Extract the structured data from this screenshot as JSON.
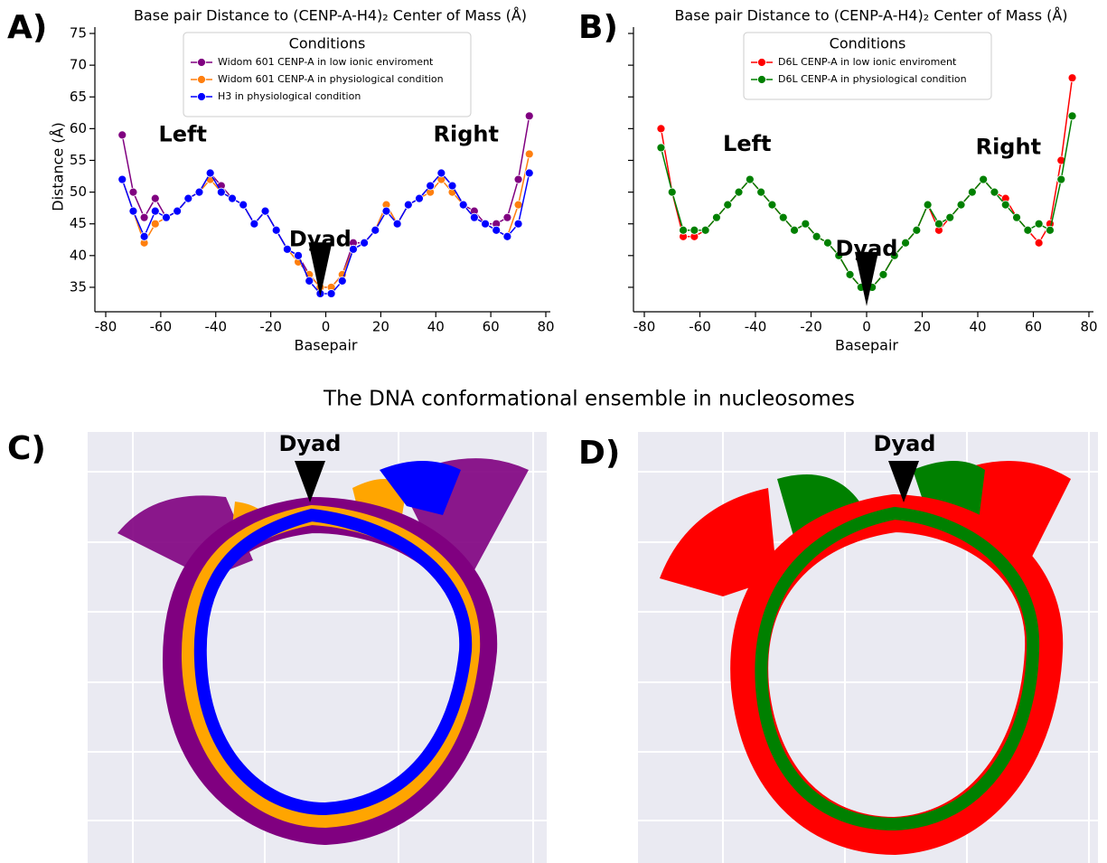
{
  "figure": {
    "panel_labels": [
      "A)",
      "B)",
      "C)",
      "D)"
    ],
    "subtitle": "The DNA conformational ensemble in nucleosomes",
    "image_annotations": [
      "Dyad",
      "Dyad"
    ]
  },
  "chart_data": [
    {
      "type": "line",
      "title": "Base pair Distance to (CENP-A-H4)₂ Center of Mass (Å)",
      "x_label": "Basepair",
      "y_label": "Distance (Å)",
      "legend_title": "Conditions",
      "legend": "upper center",
      "annotations": [
        "Left",
        "Right",
        "Dyad"
      ],
      "x": [
        -74,
        -70,
        -66,
        -62,
        -58,
        -54,
        -50,
        -46,
        -42,
        -38,
        -34,
        -30,
        -26,
        -22,
        -18,
        -14,
        -10,
        -6,
        -2,
        2,
        6,
        10,
        14,
        18,
        22,
        26,
        30,
        34,
        38,
        42,
        46,
        50,
        54,
        58,
        62,
        66,
        70,
        74
      ],
      "series": [
        {
          "name": "Widom 601 CENP-A in low ionic enviroment",
          "color": "#800080",
          "values": [
            59,
            50,
            46,
            49,
            46,
            47,
            49,
            50,
            53,
            51,
            49,
            48,
            45,
            47,
            44,
            41,
            40,
            37,
            35,
            35,
            37,
            42,
            42,
            44,
            48,
            45,
            48,
            49,
            51,
            53,
            51,
            48,
            47,
            45,
            45,
            46,
            52,
            62
          ]
        },
        {
          "name": "Widom 601 CENP-A in physiological condition",
          "color": "#ff7f0e",
          "values": [
            52,
            47,
            42,
            45,
            46,
            47,
            49,
            50,
            52,
            50,
            49,
            48,
            45,
            47,
            44,
            41,
            39,
            37,
            35,
            35,
            37,
            41,
            42,
            44,
            48,
            45,
            48,
            49,
            50,
            52,
            50,
            48,
            46,
            45,
            44,
            43,
            48,
            56
          ]
        },
        {
          "name": "H3 in physiological condition",
          "color": "#0000ff",
          "values": [
            52,
            47,
            43,
            47,
            46,
            47,
            49,
            50,
            53,
            50,
            49,
            48,
            45,
            47,
            44,
            41,
            40,
            36,
            34,
            34,
            36,
            41,
            42,
            44,
            47,
            45,
            48,
            49,
            51,
            53,
            51,
            48,
            46,
            45,
            44,
            43,
            45,
            53
          ]
        }
      ],
      "xlim": [
        -80,
        80
      ],
      "xticks": [
        -80,
        -60,
        -40,
        -20,
        0,
        20,
        40,
        60,
        80
      ],
      "ylim": [
        32,
        76
      ],
      "yticks": [
        35,
        40,
        45,
        50,
        55,
        60,
        65,
        70,
        75
      ]
    },
    {
      "type": "line",
      "title": "Base pair Distance to (CENP-A-H4)₂ Center of Mass (Å)",
      "x_label": "Basepair",
      "legend_title": "Conditions",
      "legend": "upper center",
      "annotations": [
        "Left",
        "Right",
        "Dyad"
      ],
      "x": [
        -74,
        -70,
        -66,
        -62,
        -58,
        -54,
        -50,
        -46,
        -42,
        -38,
        -34,
        -30,
        -26,
        -22,
        -18,
        -14,
        -10,
        -6,
        -2,
        2,
        6,
        10,
        14,
        18,
        22,
        26,
        30,
        34,
        38,
        42,
        46,
        50,
        54,
        58,
        62,
        66,
        70,
        74
      ],
      "series": [
        {
          "name": "D6L CENP-A in low ionic enviroment",
          "color": "#ff0000",
          "values": [
            60,
            50,
            43,
            43,
            44,
            46,
            48,
            50,
            52,
            50,
            48,
            46,
            44,
            45,
            43,
            42,
            40,
            37,
            35,
            35,
            37,
            40,
            42,
            44,
            48,
            44,
            46,
            48,
            50,
            52,
            50,
            49,
            46,
            44,
            42,
            45,
            55,
            68
          ]
        },
        {
          "name": "D6L CENP-A in physiological condition",
          "color": "#008000",
          "values": [
            57,
            50,
            44,
            44,
            44,
            46,
            48,
            50,
            52,
            50,
            48,
            46,
            44,
            45,
            43,
            42,
            40,
            37,
            35,
            35,
            37,
            40,
            42,
            44,
            48,
            45,
            46,
            48,
            50,
            52,
            50,
            48,
            46,
            44,
            45,
            44,
            52,
            62
          ]
        }
      ],
      "xlim": [
        -80,
        80
      ],
      "xticks": [
        -80,
        -60,
        -40,
        -20,
        0,
        20,
        40,
        60,
        80
      ],
      "ylim": [
        32,
        76
      ],
      "yticks": [
        35,
        40,
        45,
        50,
        55,
        60,
        65,
        70,
        75
      ]
    }
  ]
}
